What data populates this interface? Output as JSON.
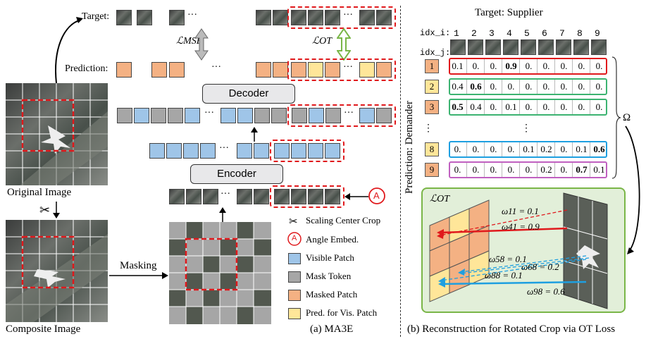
{
  "labels": {
    "target": "Target:",
    "prediction": "Prediction:",
    "decoder": "Decoder",
    "encoder": "Encoder",
    "original_image": "Original Image",
    "composite_image": "Composite Image",
    "masking": "Masking",
    "caption_a": "(a) MA3E",
    "caption_b": "(b) Reconstruction for Rotated Crop via OT Loss",
    "loss_mse": "ℒMSE",
    "loss_ot": "ℒOT",
    "loss_ot_panel": "ℒOT",
    "ellipsis": "···",
    "vdots": "⋮",
    "angle_marker": "A",
    "target_supplier": "Target: Supplier",
    "prediction_demander": "Prediction: Demander",
    "idx_i": "idx_i:",
    "idx_j": "idx_j:",
    "omega": "Ω"
  },
  "legend": [
    {
      "key": "scissors",
      "label": "Scaling Center Crop"
    },
    {
      "key": "angle",
      "label": "Angle Embed."
    },
    {
      "key": "visible",
      "label": "Visible Patch"
    },
    {
      "key": "mask",
      "label": "Mask Token"
    },
    {
      "key": "masked",
      "label": "Masked Patch"
    },
    {
      "key": "pred",
      "label": "Pred. for Vis. Patch"
    }
  ],
  "ot_matrix": {
    "col_idx": [
      "1",
      "2",
      "3",
      "4",
      "5",
      "6",
      "7",
      "8",
      "9"
    ],
    "rows": [
      {
        "idx": "1",
        "values": [
          "0.1",
          "0.",
          "0.",
          "0.9",
          "0.",
          "0.",
          "0.",
          "0.",
          "0."
        ],
        "bold": [
          3
        ]
      },
      {
        "idx": "2",
        "values": [
          "0.4",
          "0.6",
          "0.",
          "0.",
          "0.",
          "0.",
          "0.",
          "0.",
          "0."
        ],
        "bold": [
          1
        ]
      },
      {
        "idx": "3",
        "values": [
          "0.5",
          "0.4",
          "0.",
          "0.1",
          "0.",
          "0.",
          "0.",
          "0.",
          "0."
        ],
        "bold": [
          0
        ]
      },
      {
        "idx": "8",
        "values": [
          "0.",
          "0.",
          "0.",
          "0.",
          "0.1",
          "0.2",
          "0.",
          "0.1",
          "0.6"
        ],
        "bold": [
          8
        ]
      },
      {
        "idx": "9",
        "values": [
          "0.",
          "0.",
          "0.",
          "0.",
          "0.",
          "0.2",
          "0.",
          "0.7",
          "0.1"
        ],
        "bold": [
          7
        ]
      }
    ]
  },
  "ot_weights": [
    {
      "label": "ω11 = 0.1"
    },
    {
      "label": "ω41 = 0.9"
    },
    {
      "label": "ω58 = 0.1"
    },
    {
      "label": "ω68 = 0.2"
    },
    {
      "label": "ω88 = 0.1"
    },
    {
      "label": "ω98 = 0.6"
    }
  ],
  "colors": {
    "visible": "#9fc5e8",
    "mask": "#a6a6a6",
    "masked": "#f4b183",
    "pred": "#ffe699",
    "red": "#e0191c",
    "green": "#7ab648",
    "blue": "#1e9fe0"
  }
}
